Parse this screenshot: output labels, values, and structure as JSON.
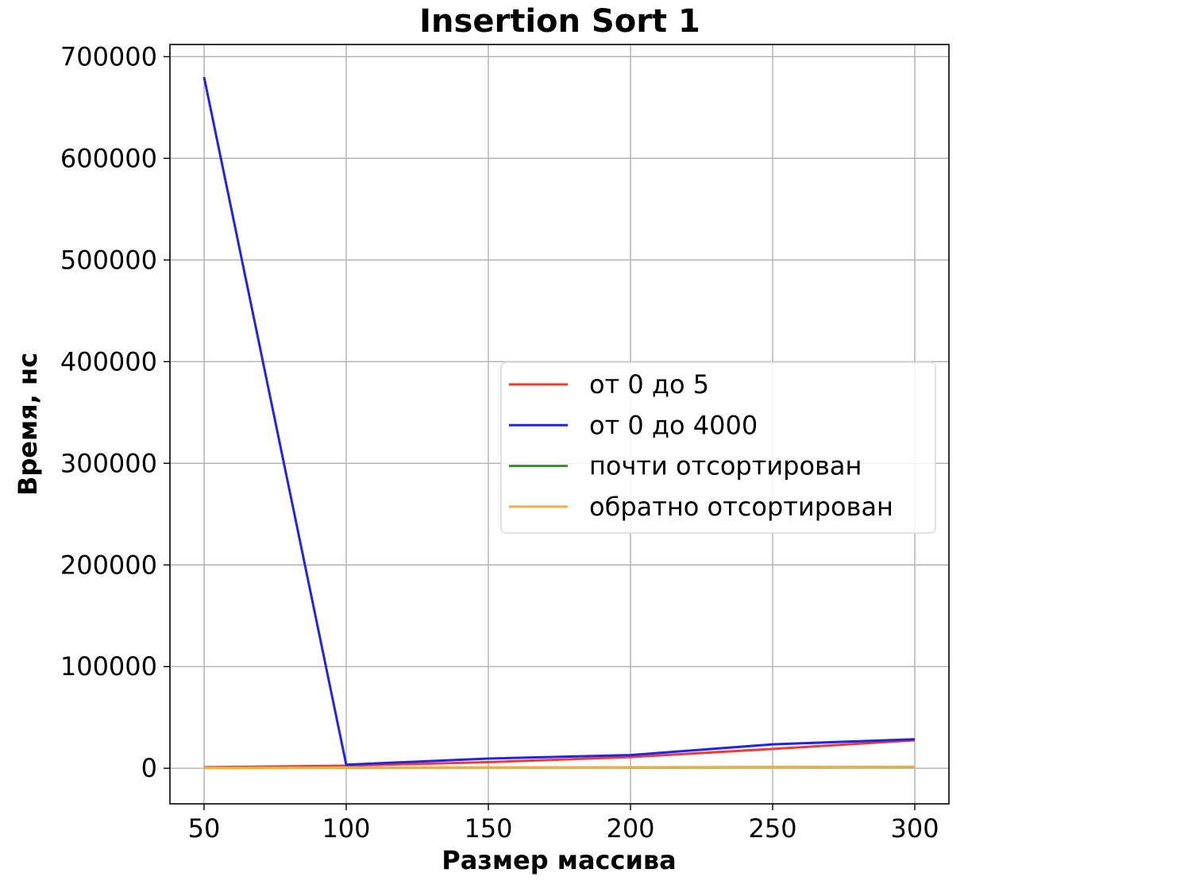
{
  "chart_data": {
    "type": "line",
    "title": "Insertion Sort 1",
    "xlabel": "Размер массива",
    "ylabel": "Время, нс",
    "x": [
      50,
      100,
      150,
      200,
      250,
      300
    ],
    "xlim": [
      38,
      312
    ],
    "ylim": [
      -35000,
      712000
    ],
    "xticks": [
      50,
      100,
      150,
      200,
      250,
      300
    ],
    "yticks": [
      0,
      100000,
      200000,
      300000,
      400000,
      500000,
      600000,
      700000
    ],
    "grid": true,
    "legend_position": "center-right",
    "series": [
      {
        "name": "от 0 до 5",
        "color": "#ee3b36",
        "values": [
          1000,
          2500,
          6000,
          11000,
          19000,
          27500
        ]
      },
      {
        "name": "от 0 до 4000",
        "color": "#2222ee",
        "values": [
          680000,
          3500,
          9500,
          13000,
          23500,
          28500
        ]
      },
      {
        "name": "почти отсортирован",
        "color": "#3a8a2a",
        "values": [
          300,
          500,
          700,
          900,
          1100,
          1300
        ]
      },
      {
        "name": "обратно отсортирован",
        "color": "#f0b040",
        "values": [
          400,
          600,
          800,
          1000,
          1200,
          1400
        ]
      }
    ]
  }
}
